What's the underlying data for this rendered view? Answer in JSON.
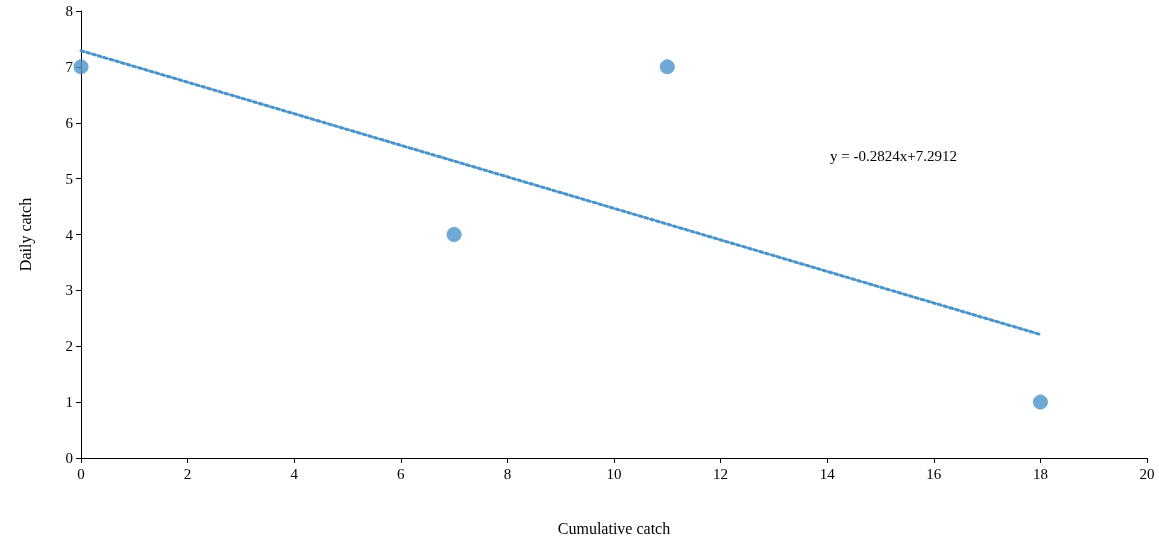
{
  "chart_data": {
    "type": "scatter",
    "xlabel": "Cumulative catch",
    "ylabel": "Daily catch",
    "xlim": [
      0,
      20
    ],
    "xticks": [
      0,
      2,
      4,
      6,
      8,
      10,
      12,
      14,
      16,
      18,
      20
    ],
    "ylim": [
      0,
      8
    ],
    "yticks": [
      0,
      1,
      2,
      3,
      4,
      5,
      6,
      7,
      8
    ],
    "grid": false,
    "marker": "circle",
    "series": [
      {
        "color": "#4a94cc",
        "x": [
          0,
          7,
          11,
          18
        ],
        "values": [
          7,
          4,
          7,
          1
        ]
      },
      {
        "type": "line",
        "color": "#4a94cc",
        "x": [
          0,
          18
        ],
        "values": [
          7.29,
          2.21
        ],
        "line_style": "dotted",
        "marker": "none"
      }
    ],
    "annotations": [
      "y = -0.2824x+7.2912"
    ]
  }
}
